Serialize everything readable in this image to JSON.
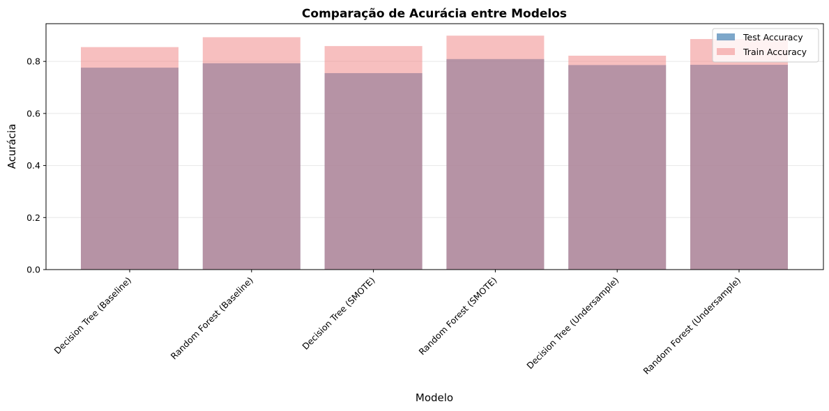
{
  "chart_data": {
    "type": "bar",
    "title": "Comparação de Acurácia entre Modelos",
    "xlabel": "Modelo",
    "ylabel": "Acurácia",
    "categories": [
      "Decision Tree (Baseline)",
      "Random Forest (Baseline)",
      "Decision Tree (SMOTE)",
      "Random Forest (SMOTE)",
      "Decision Tree (Undersample)",
      "Random Forest (Undersample)"
    ],
    "series": [
      {
        "name": "Test Accuracy",
        "color": "#4682b4",
        "alpha": 0.7,
        "values": [
          0.776,
          0.793,
          0.755,
          0.809,
          0.786,
          0.787
        ]
      },
      {
        "name": "Train Accuracy",
        "color": "#f08080",
        "alpha": 0.5,
        "values": [
          0.855,
          0.893,
          0.859,
          0.899,
          0.822,
          0.886
        ]
      }
    ],
    "ylim": [
      0,
      0.945
    ],
    "yticks": [
      0.0,
      0.2,
      0.4,
      0.6,
      0.8
    ],
    "ytick_labels": [
      "0.0",
      "0.2",
      "0.4",
      "0.6",
      "0.8"
    ],
    "grid": "y",
    "legend_position": "upper right"
  }
}
